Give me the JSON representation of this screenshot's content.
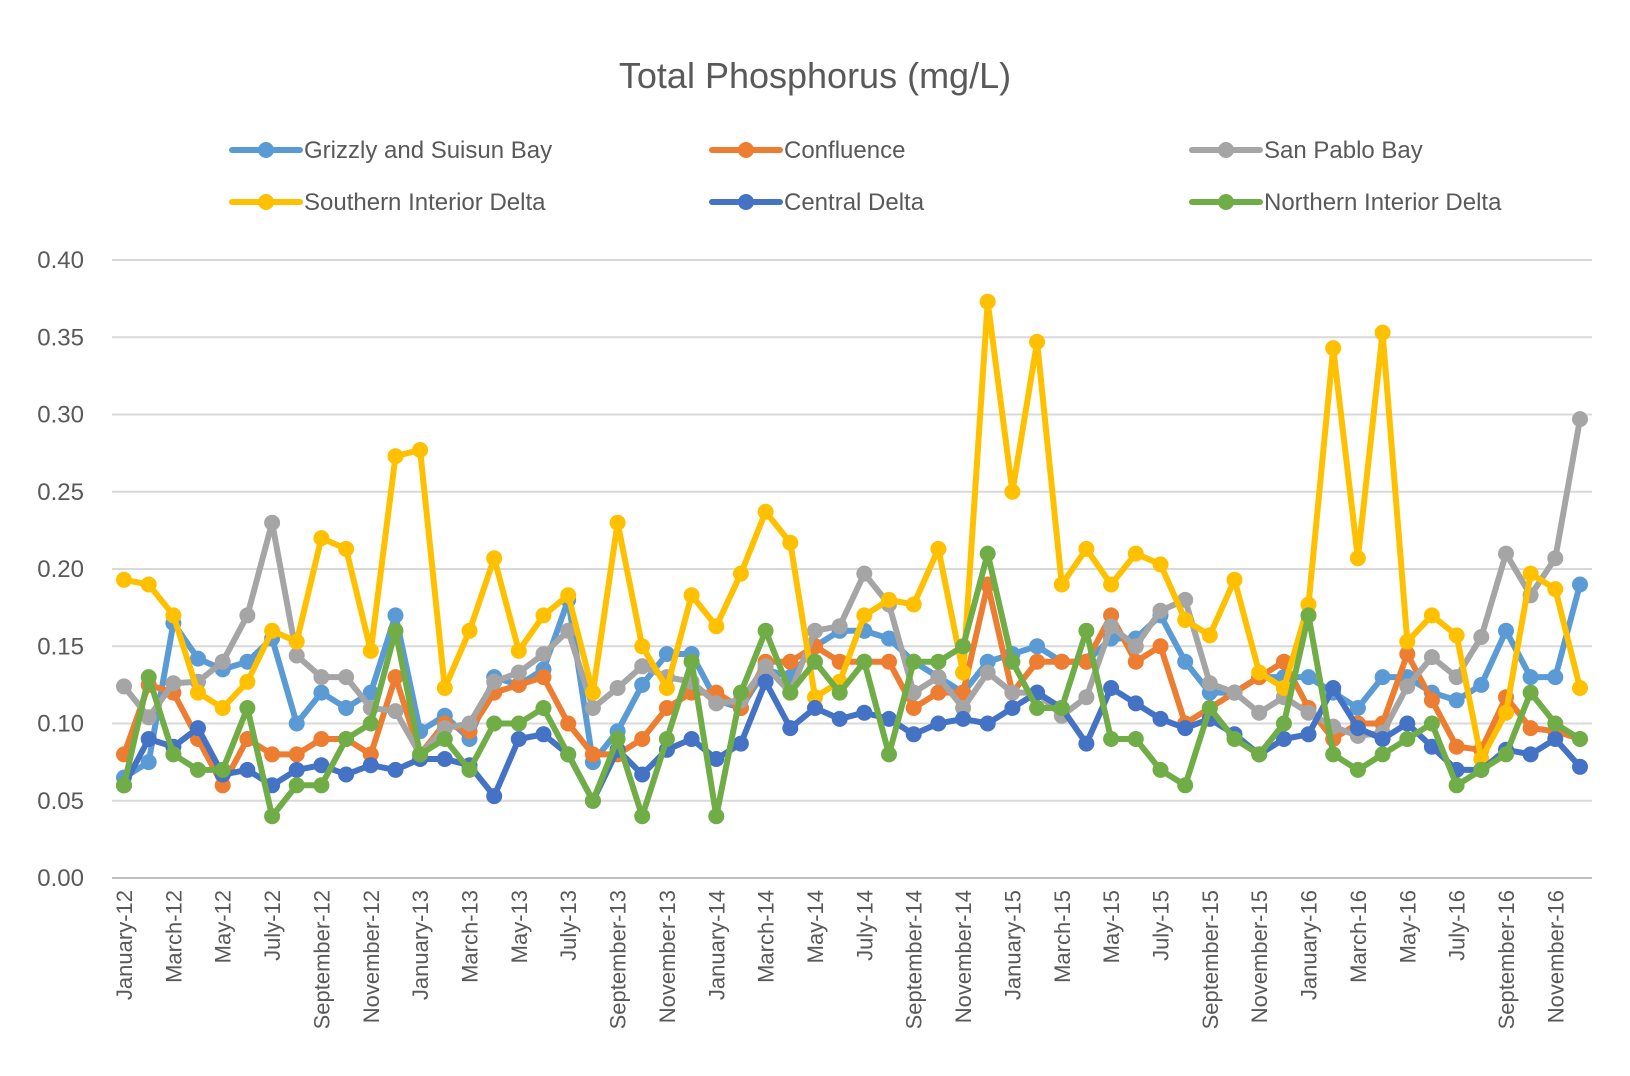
{
  "chart_data": {
    "type": "line",
    "title": "Total Phosphorus (mg/L)",
    "xlabel": "",
    "ylabel": "",
    "ylim": [
      0,
      0.4
    ],
    "yticks": [
      "0.00",
      "0.05",
      "0.10",
      "0.15",
      "0.20",
      "0.25",
      "0.30",
      "0.35",
      "0.40"
    ],
    "grid": true,
    "legend_position": "top",
    "x": [
      "January-12",
      "February-12",
      "March-12",
      "April-12",
      "May-12",
      "June-12",
      "July-12",
      "August-12",
      "September-12",
      "October-12",
      "November-12",
      "December-12",
      "January-13",
      "February-13",
      "March-13",
      "April-13",
      "May-13",
      "June-13",
      "July-13",
      "August-13",
      "September-13",
      "October-13",
      "November-13",
      "December-13",
      "January-14",
      "February-14",
      "March-14",
      "April-14",
      "May-14",
      "June-14",
      "July-14",
      "August-14",
      "September-14",
      "October-14",
      "November-14",
      "December-14",
      "January-15",
      "February-15",
      "March-15",
      "April-15",
      "May-15",
      "June-15",
      "July-15",
      "August-15",
      "September-15",
      "October-15",
      "November-15",
      "December-15",
      "January-16",
      "February-16",
      "March-16",
      "April-16",
      "May-16",
      "June-16",
      "July-16",
      "August-16",
      "September-16",
      "October-16",
      "November-16",
      "December-16"
    ],
    "xtick_labels": [
      "January-12",
      "March-12",
      "May-12",
      "July-12",
      "September-12",
      "November-12",
      "January-13",
      "March-13",
      "May-13",
      "July-13",
      "September-13",
      "November-13",
      "January-14",
      "March-14",
      "May-14",
      "July-14",
      "September-14",
      "November-14",
      "January-15",
      "March-15",
      "May-15",
      "July-15",
      "September-15",
      "November-15",
      "January-16",
      "March-16",
      "May-16",
      "July-16",
      "September-16",
      "November-16"
    ],
    "series": [
      {
        "name": "Grizzly and Suisun Bay",
        "color": "#5B9BD5",
        "values": [
          0.065,
          0.075,
          0.165,
          0.142,
          0.135,
          0.14,
          0.155,
          0.1,
          0.12,
          0.11,
          0.12,
          0.17,
          0.095,
          0.105,
          0.09,
          0.13,
          0.125,
          0.135,
          0.18,
          0.075,
          0.095,
          0.125,
          0.145,
          0.145,
          0.115,
          0.11,
          0.135,
          0.13,
          0.15,
          0.16,
          0.16,
          0.155,
          0.14,
          0.13,
          0.12,
          0.14,
          0.145,
          0.15,
          0.14,
          0.14,
          0.155,
          0.155,
          0.17,
          0.14,
          0.12,
          0.12,
          0.13,
          0.13,
          0.13,
          0.12,
          0.11,
          0.13,
          0.13,
          0.12,
          0.115,
          0.125,
          0.16,
          0.13,
          0.13,
          0.19
        ]
      },
      {
        "name": "Confluence",
        "color": "#ED7D31",
        "values": [
          0.08,
          0.125,
          0.12,
          0.09,
          0.06,
          0.09,
          0.08,
          0.08,
          0.09,
          0.09,
          0.08,
          0.13,
          0.08,
          0.1,
          0.095,
          0.12,
          0.125,
          0.13,
          0.1,
          0.08,
          0.08,
          0.09,
          0.11,
          0.12,
          0.12,
          0.11,
          0.14,
          0.14,
          0.15,
          0.14,
          0.14,
          0.14,
          0.11,
          0.12,
          0.12,
          0.19,
          0.12,
          0.14,
          0.14,
          0.14,
          0.17,
          0.14,
          0.15,
          0.1,
          0.11,
          0.12,
          0.13,
          0.14,
          0.11,
          0.09,
          0.1,
          0.1,
          0.145,
          0.115,
          0.085,
          0.083,
          0.117,
          0.097,
          0.095,
          0.09
        ]
      },
      {
        "name": "San Pablo Bay",
        "color": "#A5A5A5",
        "values": [
          0.124,
          0.104,
          0.126,
          0.127,
          0.14,
          0.17,
          0.23,
          0.144,
          0.13,
          0.13,
          0.11,
          0.108,
          0.08,
          0.097,
          0.1,
          0.127,
          0.133,
          0.145,
          0.16,
          0.11,
          0.123,
          0.137,
          0.13,
          0.127,
          0.113,
          0.115,
          0.137,
          0.12,
          0.16,
          0.163,
          0.197,
          0.177,
          0.12,
          0.13,
          0.11,
          0.133,
          0.12,
          0.12,
          0.105,
          0.117,
          0.163,
          0.15,
          0.173,
          0.18,
          0.126,
          0.12,
          0.107,
          0.117,
          0.107,
          0.098,
          0.092,
          0.094,
          0.124,
          0.143,
          0.13,
          0.156,
          0.21,
          0.183,
          0.207,
          0.297
        ]
      },
      {
        "name": "Southern Interior Delta",
        "color": "#FFC000",
        "values": [
          0.193,
          0.19,
          0.17,
          0.12,
          0.11,
          0.127,
          0.16,
          0.153,
          0.22,
          0.213,
          0.147,
          0.273,
          0.277,
          0.123,
          0.16,
          0.207,
          0.147,
          0.17,
          0.183,
          0.12,
          0.23,
          0.15,
          0.123,
          0.183,
          0.163,
          0.197,
          0.237,
          0.217,
          0.117,
          0.127,
          0.17,
          0.18,
          0.177,
          0.213,
          0.133,
          0.373,
          0.25,
          0.347,
          0.19,
          0.213,
          0.19,
          0.21,
          0.203,
          0.167,
          0.157,
          0.193,
          0.133,
          0.123,
          0.177,
          0.343,
          0.207,
          0.353,
          0.153,
          0.17,
          0.157,
          0.077,
          0.107,
          0.197,
          0.187,
          0.123
        ]
      },
      {
        "name": "Central Delta",
        "color": "#4472C4",
        "values": [
          0.06,
          0.09,
          0.085,
          0.097,
          0.067,
          0.07,
          0.06,
          0.07,
          0.073,
          0.067,
          0.073,
          0.07,
          0.077,
          0.077,
          0.073,
          0.053,
          0.09,
          0.093,
          0.08,
          0.05,
          0.083,
          0.067,
          0.083,
          0.09,
          0.077,
          0.087,
          0.127,
          0.097,
          0.11,
          0.103,
          0.107,
          0.103,
          0.093,
          0.1,
          0.103,
          0.1,
          0.11,
          0.12,
          0.11,
          0.087,
          0.123,
          0.113,
          0.103,
          0.097,
          0.103,
          0.093,
          0.08,
          0.09,
          0.093,
          0.123,
          0.097,
          0.09,
          0.1,
          0.085,
          0.07,
          0.07,
          0.083,
          0.08,
          0.09,
          0.072
        ]
      },
      {
        "name": "Northern Interior Delta",
        "color": "#70AD47",
        "values": [
          0.06,
          0.13,
          0.08,
          0.07,
          0.07,
          0.11,
          0.04,
          0.06,
          0.06,
          0.09,
          0.1,
          0.16,
          0.08,
          0.09,
          0.07,
          0.1,
          0.1,
          0.11,
          0.08,
          0.05,
          0.09,
          0.04,
          0.09,
          0.14,
          0.04,
          0.12,
          0.16,
          0.12,
          0.14,
          0.12,
          0.14,
          0.08,
          0.14,
          0.14,
          0.15,
          0.21,
          0.14,
          0.11,
          0.11,
          0.16,
          0.09,
          0.09,
          0.07,
          0.06,
          0.11,
          0.09,
          0.08,
          0.1,
          0.17,
          0.08,
          0.07,
          0.08,
          0.09,
          0.1,
          0.06,
          0.07,
          0.08,
          0.12,
          0.1,
          0.09
        ]
      }
    ]
  }
}
